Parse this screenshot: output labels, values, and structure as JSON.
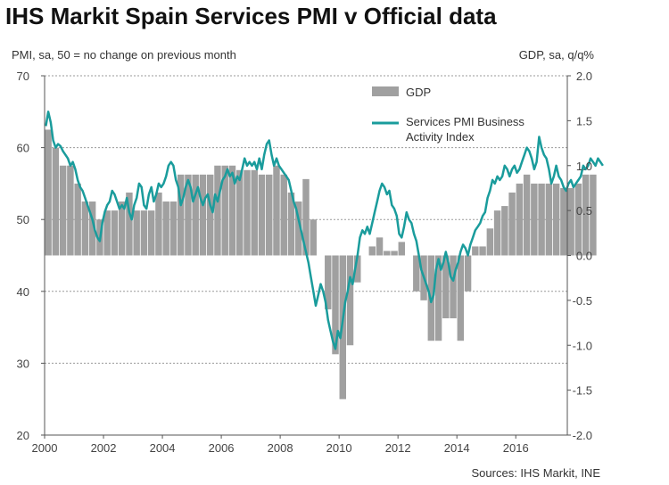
{
  "chart_data": {
    "type": "bar+line",
    "title": "IHS Markit Spain Services PMI v Official data",
    "left_axis_label": "PMI, sa, 50 = no change on previous month",
    "right_axis_label": "GDP, sa, q/q%",
    "source": "Sources: IHS Markit, INE",
    "left_ylim": [
      20,
      70
    ],
    "left_ticks": [
      "20",
      "30",
      "40",
      "50",
      "60",
      "70"
    ],
    "right_ylim": [
      -2.0,
      2.0
    ],
    "right_ticks": [
      "-2.0",
      "-1.5",
      "-1.0",
      "-0.5",
      "0.0",
      "0.5",
      "1.0",
      "1.5",
      "2.0"
    ],
    "x_ticks": [
      "2000",
      "2002",
      "2004",
      "2006",
      "2008",
      "2010",
      "2012",
      "2014",
      "2016"
    ],
    "x_range": [
      2000,
      2017.75
    ],
    "legend": [
      {
        "name": "GDP",
        "kind": "bar",
        "color": "#a0a0a0"
      },
      {
        "name": "Services PMI Business",
        "name2": "Activity Index",
        "kind": "line",
        "color": "#1a9c9c"
      }
    ],
    "gdp_quarterly": [
      1.4,
      1.2,
      1.0,
      1.0,
      0.8,
      0.6,
      0.6,
      0.4,
      0.5,
      0.5,
      0.6,
      0.7,
      0.5,
      0.5,
      0.5,
      0.7,
      0.6,
      0.6,
      0.9,
      0.9,
      0.9,
      0.9,
      0.9,
      1.0,
      1.0,
      1.0,
      0.95,
      0.95,
      0.95,
      0.9,
      0.9,
      1.0,
      0.9,
      0.7,
      0.6,
      0.85,
      0.4,
      0.0,
      -0.6,
      -1.1,
      -1.6,
      -1.0,
      -0.3,
      0.0,
      0.1,
      0.2,
      0.05,
      0.05,
      0.15,
      0.0,
      -0.4,
      -0.5,
      -0.95,
      -0.95,
      -0.7,
      -0.7,
      -0.95,
      -0.4,
      0.1,
      0.1,
      0.3,
      0.5,
      0.55,
      0.7,
      0.8,
      0.9,
      0.8,
      0.8,
      0.8,
      0.8,
      0.75,
      0.75,
      0.8,
      0.9,
      0.9
    ],
    "pmi_monthly": [
      63.0,
      65.0,
      63.5,
      61.0,
      60.0,
      60.5,
      60.2,
      59.5,
      59.0,
      58.5,
      57.5,
      58.0,
      57.0,
      55.5,
      54.5,
      54.0,
      53.0,
      52.0,
      51.0,
      50.0,
      48.5,
      47.5,
      47.0,
      49.5,
      51.0,
      52.0,
      52.5,
      54.0,
      53.5,
      52.5,
      51.5,
      52.0,
      51.5,
      53.0,
      51.0,
      50.0,
      52.0,
      53.0,
      55.0,
      54.5,
      52.0,
      51.5,
      53.5,
      54.5,
      52.5,
      53.5,
      55.0,
      54.5,
      55.0,
      56.0,
      57.5,
      58.0,
      57.5,
      55.5,
      54.5,
      52.0,
      53.0,
      54.5,
      55.5,
      54.5,
      52.5,
      53.5,
      54.5,
      53.0,
      52.0,
      53.0,
      53.5,
      52.0,
      51.0,
      53.5,
      52.5,
      54.0,
      55.5,
      56.0,
      57.0,
      56.0,
      56.5,
      55.0,
      56.0,
      55.5,
      57.0,
      58.5,
      57.5,
      58.0,
      57.5,
      58.0,
      57.0,
      58.5,
      57.0,
      59.0,
      60.5,
      61.0,
      59.0,
      57.5,
      58.5,
      57.5,
      57.0,
      56.5,
      56.0,
      55.5,
      54.0,
      52.5,
      51.5,
      50.0,
      48.5,
      47.0,
      45.5,
      44.0,
      42.0,
      40.0,
      38.0,
      39.5,
      41.0,
      40.0,
      38.5,
      36.0,
      34.5,
      33.0,
      32.0,
      34.5,
      33.5,
      36.0,
      38.5,
      40.0,
      42.0,
      41.0,
      43.0,
      45.0,
      47.5,
      48.5,
      48.0,
      49.0,
      48.0,
      49.5,
      51.0,
      52.5,
      54.0,
      55.0,
      54.5,
      53.5,
      54.0,
      52.0,
      51.5,
      50.5,
      48.0,
      47.5,
      49.0,
      51.0,
      50.0,
      49.5,
      48.0,
      47.0,
      45.0,
      43.0,
      42.0,
      41.0,
      40.0,
      38.5,
      39.5,
      43.0,
      44.5,
      43.0,
      44.0,
      45.5,
      44.0,
      42.0,
      41.5,
      43.0,
      44.0,
      45.5,
      46.5,
      46.0,
      45.0,
      46.5,
      47.5,
      48.5,
      49.0,
      49.5,
      50.5,
      51.0,
      53.0,
      54.0,
      55.5,
      55.0,
      56.0,
      55.5,
      56.0,
      57.5,
      57.0,
      56.0,
      57.0,
      57.5,
      56.5,
      57.0,
      58.0,
      59.0,
      60.0,
      59.5,
      58.5,
      57.0,
      58.0,
      61.5,
      60.0,
      59.0,
      58.5,
      57.0,
      55.0,
      56.0,
      57.5,
      56.0,
      55.5,
      54.5,
      54.0,
      55.0,
      55.5,
      54.5,
      55.0,
      55.5,
      56.0,
      57.5,
      57.0,
      57.5,
      58.5,
      58.0,
      57.5,
      58.5,
      58.0,
      57.5
    ]
  }
}
